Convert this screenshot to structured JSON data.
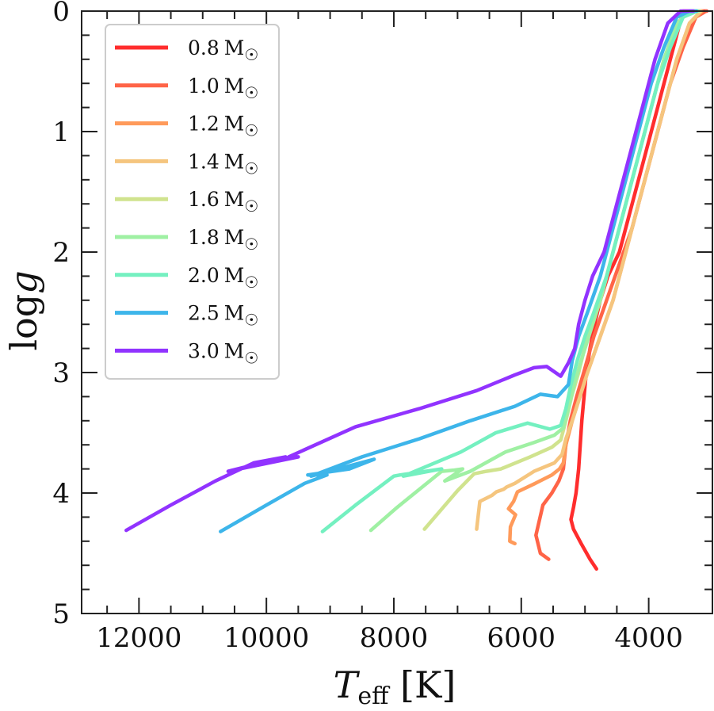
{
  "chart_data": {
    "type": "line",
    "title": "",
    "xlabel": "T_eff [K]",
    "xlabel_main": "T",
    "xlabel_sub": "eff",
    "xlabel_unit": " [K]",
    "ylabel": "log g",
    "ylabel_main": "log",
    "ylabel_var": "g",
    "xlim": [
      12900,
      3000
    ],
    "ylim": [
      0,
      5
    ],
    "x_ticks": [
      12000,
      10000,
      8000,
      6000,
      4000
    ],
    "x_tick_labels": [
      "12000",
      "10000",
      "8000",
      "6000",
      "4000"
    ],
    "y_ticks": [
      0,
      1,
      2,
      3,
      4,
      5
    ],
    "y_tick_labels": [
      "0",
      "1",
      "2",
      "3",
      "4",
      "5"
    ],
    "grid": false,
    "legend_position": "top-left",
    "series": [
      {
        "name": "0.8 M☉",
        "label_num": "0.8",
        "color": "#ff2d2d",
        "x": [
          4820,
          4920,
          5060,
          5180,
          5220,
          5180,
          5140,
          5100,
          5050,
          4980,
          4920,
          4850,
          4760,
          4640,
          4460,
          4260,
          4060,
          3860,
          3660,
          3460,
          3260,
          3090
        ],
        "y": [
          4.63,
          4.55,
          4.42,
          4.3,
          4.22,
          4.12,
          4.0,
          3.8,
          3.4,
          3.0,
          2.8,
          2.6,
          2.4,
          2.2,
          2.0,
          1.6,
          1.2,
          0.8,
          0.4,
          0.0,
          0.0,
          0.0
        ]
      },
      {
        "name": "1.0 M☉",
        "label_num": "1.0",
        "color": "#ff6447",
        "x": [
          5570,
          5700,
          5770,
          5660,
          5520,
          5410,
          5340,
          5300,
          5230,
          5130,
          5020,
          4860,
          4660,
          4460,
          4260,
          4060,
          3860,
          3660,
          3460,
          3260,
          3100
        ],
        "y": [
          4.55,
          4.5,
          4.35,
          4.1,
          4.0,
          3.9,
          3.8,
          3.6,
          3.4,
          3.2,
          3.0,
          2.7,
          2.4,
          2.1,
          1.8,
          1.4,
          1.0,
          0.6,
          0.3,
          0.05,
          0.0
        ]
      },
      {
        "name": "1.2 M☉",
        "label_num": "1.2",
        "color": "#ff9a5a",
        "x": [
          6100,
          6180,
          6170,
          6090,
          6200,
          6120,
          6060,
          5780,
          5520,
          5400,
          5340,
          5300,
          5200,
          5080,
          4960,
          4760,
          4560,
          4360,
          4160,
          3960,
          3760,
          3560,
          3360,
          3160
        ],
        "y": [
          4.42,
          4.4,
          4.28,
          4.18,
          4.13,
          4.07,
          3.99,
          3.92,
          3.85,
          3.8,
          3.75,
          3.6,
          3.4,
          3.2,
          3.0,
          2.7,
          2.4,
          2.0,
          1.6,
          1.2,
          0.8,
          0.4,
          0.1,
          0.0
        ]
      },
      {
        "name": "1.4 M☉",
        "label_num": "1.4",
        "color": "#f5c57e",
        "x": [
          6700,
          6650,
          6460,
          6390,
          6280,
          6230,
          6100,
          5800,
          5480,
          5360,
          5300,
          5200,
          5080,
          4960,
          4760,
          4560,
          4360,
          4160,
          3960,
          3760,
          3560,
          3360,
          3180
        ],
        "y": [
          4.3,
          4.07,
          4.02,
          3.99,
          3.97,
          3.95,
          3.92,
          3.82,
          3.75,
          3.68,
          3.55,
          3.4,
          3.2,
          3.0,
          2.7,
          2.4,
          2.0,
          1.6,
          1.2,
          0.8,
          0.4,
          0.1,
          0.0
        ]
      },
      {
        "name": "1.6 M☉",
        "label_num": "1.6",
        "color": "#d0e38e",
        "x": [
          7520,
          7000,
          6740,
          6550,
          6320,
          5860,
          5520,
          5380,
          5300,
          5210,
          5100,
          4960,
          4760,
          4560,
          4360,
          4160,
          3960,
          3760,
          3560,
          3360,
          3200
        ],
        "y": [
          4.3,
          3.98,
          3.84,
          3.82,
          3.8,
          3.7,
          3.62,
          3.56,
          3.4,
          3.2,
          3.0,
          2.7,
          2.4,
          2.0,
          1.6,
          1.2,
          0.8,
          0.4,
          0.1,
          0.0,
          0.0
        ]
      },
      {
        "name": "1.8 M☉",
        "label_num": "1.8",
        "color": "#9ff0a3",
        "x": [
          8360,
          7950,
          7250,
          7050,
          6920,
          7200,
          6800,
          6250,
          5800,
          5480,
          5340,
          5260,
          5170,
          5060,
          4940,
          4760,
          4560,
          4360,
          4160,
          3960,
          3760,
          3560,
          3360,
          3220
        ],
        "y": [
          4.31,
          4.12,
          3.82,
          3.81,
          3.8,
          3.9,
          3.82,
          3.66,
          3.58,
          3.52,
          3.46,
          3.3,
          3.1,
          2.9,
          2.7,
          2.4,
          2.0,
          1.6,
          1.2,
          0.8,
          0.4,
          0.1,
          0.0,
          0.0
        ]
      },
      {
        "name": "2.0 M☉",
        "label_num": "2.0",
        "color": "#74f0c0",
        "x": [
          9120,
          8600,
          8000,
          7900,
          7500,
          7250,
          7850,
          6950,
          6400,
          5900,
          5550,
          5380,
          5300,
          5220,
          5120,
          5000,
          4860,
          4660,
          4460,
          4260,
          4060,
          3860,
          3660,
          3460,
          3240
        ],
        "y": [
          4.32,
          4.1,
          3.86,
          3.85,
          3.82,
          3.8,
          3.86,
          3.66,
          3.5,
          3.42,
          3.47,
          3.44,
          3.3,
          3.1,
          2.9,
          2.7,
          2.5,
          2.2,
          1.8,
          1.4,
          1.0,
          0.6,
          0.3,
          0.05,
          0.0
        ]
      },
      {
        "name": "2.5 M☉",
        "label_num": "2.5",
        "color": "#3db5ea",
        "x": [
          10720,
          10000,
          9400,
          9050,
          9350,
          8700,
          8310,
          9300,
          8500,
          7600,
          6800,
          6100,
          5700,
          5430,
          5260,
          5200,
          5100,
          4960,
          4760,
          4560,
          4360,
          4160,
          3960,
          3760,
          3560,
          3360,
          3250
        ],
        "y": [
          4.32,
          4.1,
          3.92,
          3.85,
          3.85,
          3.8,
          3.72,
          3.86,
          3.7,
          3.55,
          3.4,
          3.28,
          3.18,
          3.2,
          3.1,
          2.9,
          2.7,
          2.5,
          2.2,
          1.8,
          1.4,
          1.0,
          0.6,
          0.3,
          0.05,
          0.0,
          0.0
        ]
      },
      {
        "name": "3.0 M☉",
        "label_num": "3.0",
        "color": "#9133ff",
        "x": [
          12200,
          11500,
          10800,
          10200,
          9700,
          10600,
          9500,
          9650,
          8600,
          7600,
          6700,
          6100,
          5800,
          5600,
          5380,
          5260,
          5160,
          5100,
          5000,
          4880,
          4700,
          4500,
          4300,
          4100,
          3900,
          3700,
          3500,
          3300
        ],
        "y": [
          4.31,
          4.1,
          3.9,
          3.75,
          3.7,
          3.82,
          3.7,
          3.7,
          3.45,
          3.3,
          3.15,
          3.02,
          2.96,
          2.95,
          3.03,
          2.92,
          2.8,
          2.6,
          2.4,
          2.2,
          2.0,
          1.6,
          1.2,
          0.8,
          0.4,
          0.1,
          0.0,
          0.0
        ]
      }
    ]
  }
}
